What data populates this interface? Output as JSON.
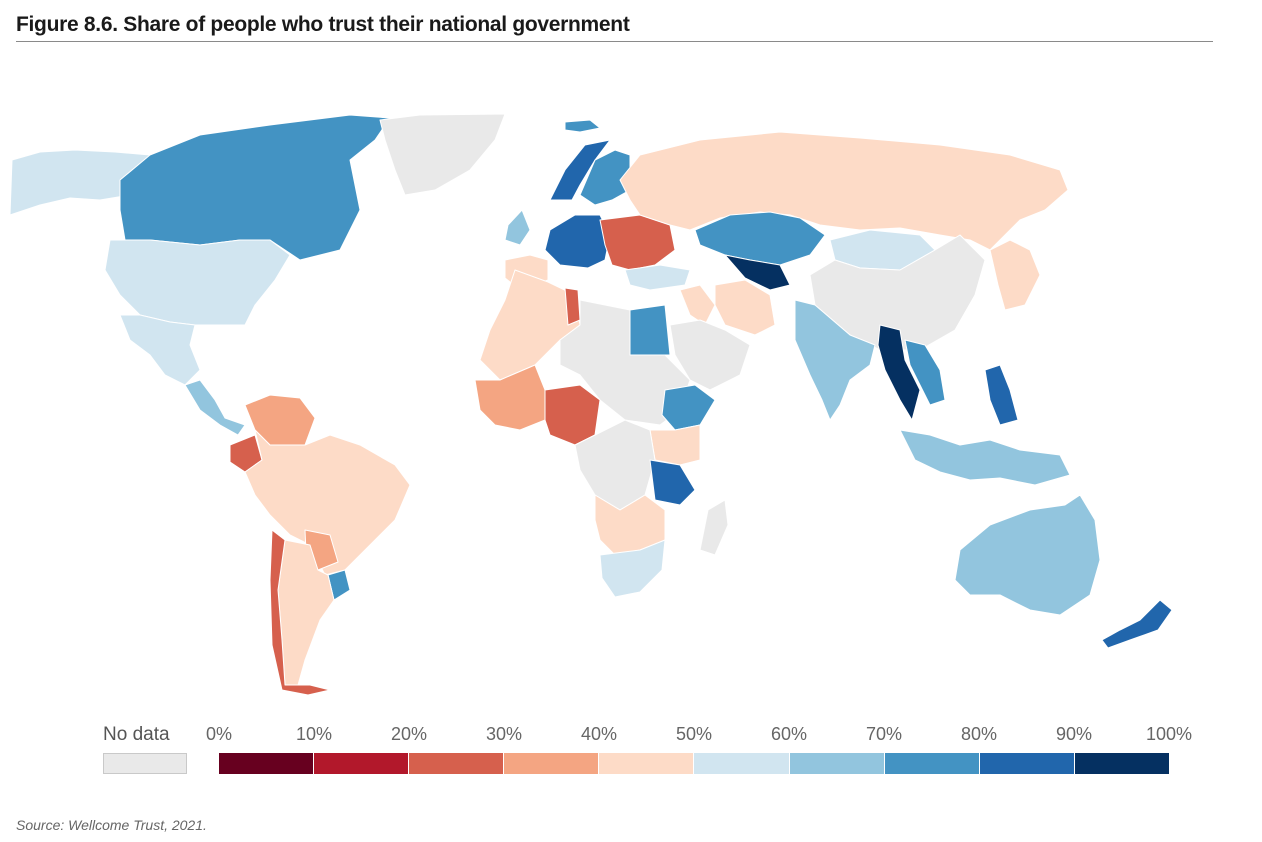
{
  "figure": {
    "title": "Figure 8.6. Share of people who trust their national government",
    "source": "Source: Wellcome Trust, 2021."
  },
  "legend": {
    "no_data_label": "No data",
    "no_data_color": "#e9e9e9",
    "ticks": [
      "0%",
      "10%",
      "20%",
      "30%",
      "40%",
      "50%",
      "60%",
      "70%",
      "80%",
      "90%",
      "100%"
    ],
    "bins": [
      {
        "range": "0-10",
        "color": "#67001f"
      },
      {
        "range": "10-20",
        "color": "#b2182b"
      },
      {
        "range": "20-30",
        "color": "#d6604d"
      },
      {
        "range": "30-40",
        "color": "#f4a582"
      },
      {
        "range": "40-50",
        "color": "#fddbc7"
      },
      {
        "range": "50-60",
        "color": "#d1e5f0"
      },
      {
        "range": "60-70",
        "color": "#92c5de"
      },
      {
        "range": "70-80",
        "color": "#4393c3"
      },
      {
        "range": "80-90",
        "color": "#2166ac"
      },
      {
        "range": "90-100",
        "color": "#053061"
      }
    ]
  },
  "map": {
    "regions": [
      {
        "name": "alaska",
        "bin": 5
      },
      {
        "name": "canada",
        "bin": 7
      },
      {
        "name": "greenland",
        "bin": -1
      },
      {
        "name": "usa",
        "bin": 5
      },
      {
        "name": "mexico",
        "bin": 5
      },
      {
        "name": "central-america",
        "bin": 6
      },
      {
        "name": "venezuela-colombia",
        "bin": 3
      },
      {
        "name": "ecuador",
        "bin": 2
      },
      {
        "name": "brazil-peru-bolivia",
        "bin": 4
      },
      {
        "name": "paraguay",
        "bin": 3
      },
      {
        "name": "uruguay",
        "bin": 7
      },
      {
        "name": "argentina",
        "bin": 4
      },
      {
        "name": "chile",
        "bin": 2
      },
      {
        "name": "iceland",
        "bin": 7
      },
      {
        "name": "norway",
        "bin": 8
      },
      {
        "name": "sweden-finland",
        "bin": 7
      },
      {
        "name": "uk-ireland",
        "bin": 6
      },
      {
        "name": "western-europe",
        "bin": 8
      },
      {
        "name": "spain-portugal",
        "bin": 4
      },
      {
        "name": "eastern-europe",
        "bin": 2
      },
      {
        "name": "russia",
        "bin": 4
      },
      {
        "name": "kazakhstan",
        "bin": 7
      },
      {
        "name": "uzbekistan",
        "bin": 9
      },
      {
        "name": "mongolia",
        "bin": 5
      },
      {
        "name": "china",
        "bin": -1
      },
      {
        "name": "japan-korea",
        "bin": 4
      },
      {
        "name": "turkey",
        "bin": 5
      },
      {
        "name": "middle-east",
        "bin": 4
      },
      {
        "name": "iran",
        "bin": 4
      },
      {
        "name": "saudi-arabia",
        "bin": -1
      },
      {
        "name": "egypt",
        "bin": 7
      },
      {
        "name": "north-africa-west",
        "bin": 4
      },
      {
        "name": "tunisia",
        "bin": 2
      },
      {
        "name": "libya-sudan",
        "bin": -1
      },
      {
        "name": "west-africa",
        "bin": 3
      },
      {
        "name": "nigeria-cameroon",
        "bin": 2
      },
      {
        "name": "ethiopia",
        "bin": 7
      },
      {
        "name": "kenya-uganda",
        "bin": 4
      },
      {
        "name": "tanzania",
        "bin": 8
      },
      {
        "name": "congo",
        "bin": -1
      },
      {
        "name": "southern-africa",
        "bin": 4
      },
      {
        "name": "south-africa",
        "bin": 5
      },
      {
        "name": "madagascar",
        "bin": -1
      },
      {
        "name": "india",
        "bin": 6
      },
      {
        "name": "myanmar-thailand",
        "bin": 9
      },
      {
        "name": "vietnam-cambodia",
        "bin": 7
      },
      {
        "name": "philippines",
        "bin": 8
      },
      {
        "name": "indonesia",
        "bin": 6
      },
      {
        "name": "australia",
        "bin": 6
      },
      {
        "name": "new-zealand",
        "bin": 8
      }
    ]
  }
}
